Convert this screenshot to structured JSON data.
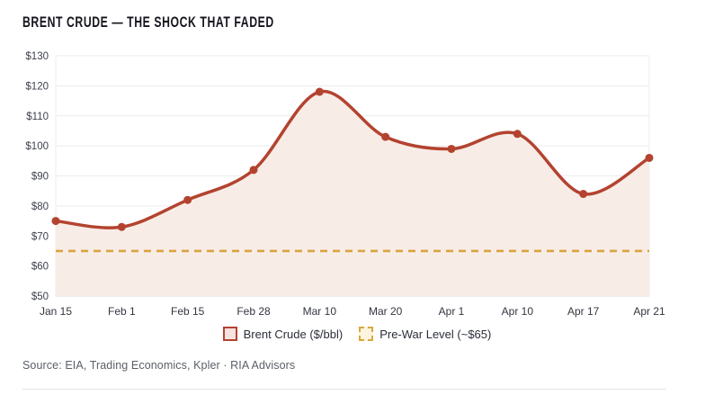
{
  "title": "BRENT CRUDE — THE SHOCK THAT FADED",
  "source": "Source: EIA, Trading Economics, Kpler · RIA Advisors",
  "legend": {
    "items": [
      {
        "label": "Brent Crude ($/bbl)"
      },
      {
        "label": "Pre-War Level (~$65)"
      }
    ]
  },
  "colors": {
    "line": "#b3432f",
    "area": "#f8ece7",
    "reference": "#d9a43f",
    "grid": "#ececec",
    "axis_line": "#d9d9d9",
    "title": "#15151e",
    "axis_text": "#3d414c",
    "source_text": "#5a5f68"
  },
  "chart_data": {
    "type": "line",
    "title": "BRENT CRUDE — THE SHOCK THAT FADED",
    "categories": [
      "Jan 15",
      "Feb 1",
      "Feb 15",
      "Feb 28",
      "Mar 10",
      "Mar 20",
      "Apr 1",
      "Apr 10",
      "Apr 17",
      "Apr 21"
    ],
    "series": [
      {
        "name": "Brent Crude ($/bbl)",
        "type": "smooth-line-area-markers",
        "values": [
          75,
          73,
          82,
          92,
          118,
          103,
          99,
          104,
          84,
          96
        ]
      },
      {
        "name": "Pre-War Level (~$65)",
        "type": "reference-line-dashed",
        "value": 65
      }
    ],
    "xlabel": "",
    "ylabel": "",
    "ylim": [
      50,
      130
    ],
    "y_tick_step": 10,
    "y_ticks": [
      "$130",
      "$120",
      "$110",
      "$100",
      "$90",
      "$80",
      "$70",
      "$60",
      "$50"
    ],
    "grid": "horizontal",
    "legend_position": "bottom"
  }
}
